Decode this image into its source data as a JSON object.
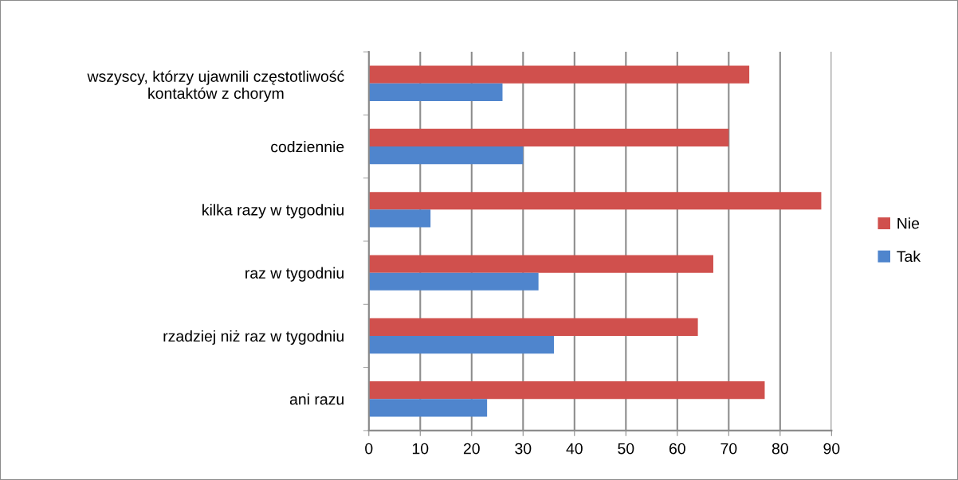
{
  "chart_data": {
    "type": "bar",
    "orientation": "horizontal",
    "categories": [
      "wszyscy, którzy ujawnili częstotliwość\nkontaktów z chorym",
      "codziennie",
      "kilka razy w tygodniu",
      "raz w tygodniu",
      "rzadziej niż raz w tygodniu",
      "ani razu"
    ],
    "series": [
      {
        "name": "Nie",
        "color": "#d0504d",
        "values": [
          74,
          70,
          88,
          67,
          64,
          77
        ]
      },
      {
        "name": "Tak",
        "color": "#4f85cd",
        "values": [
          26,
          30,
          12,
          33,
          36,
          23
        ]
      }
    ],
    "xlim": [
      0,
      90
    ],
    "xticks": [
      0,
      10,
      20,
      30,
      40,
      50,
      60,
      70,
      80,
      90
    ],
    "grid": "x",
    "legend": "right"
  }
}
